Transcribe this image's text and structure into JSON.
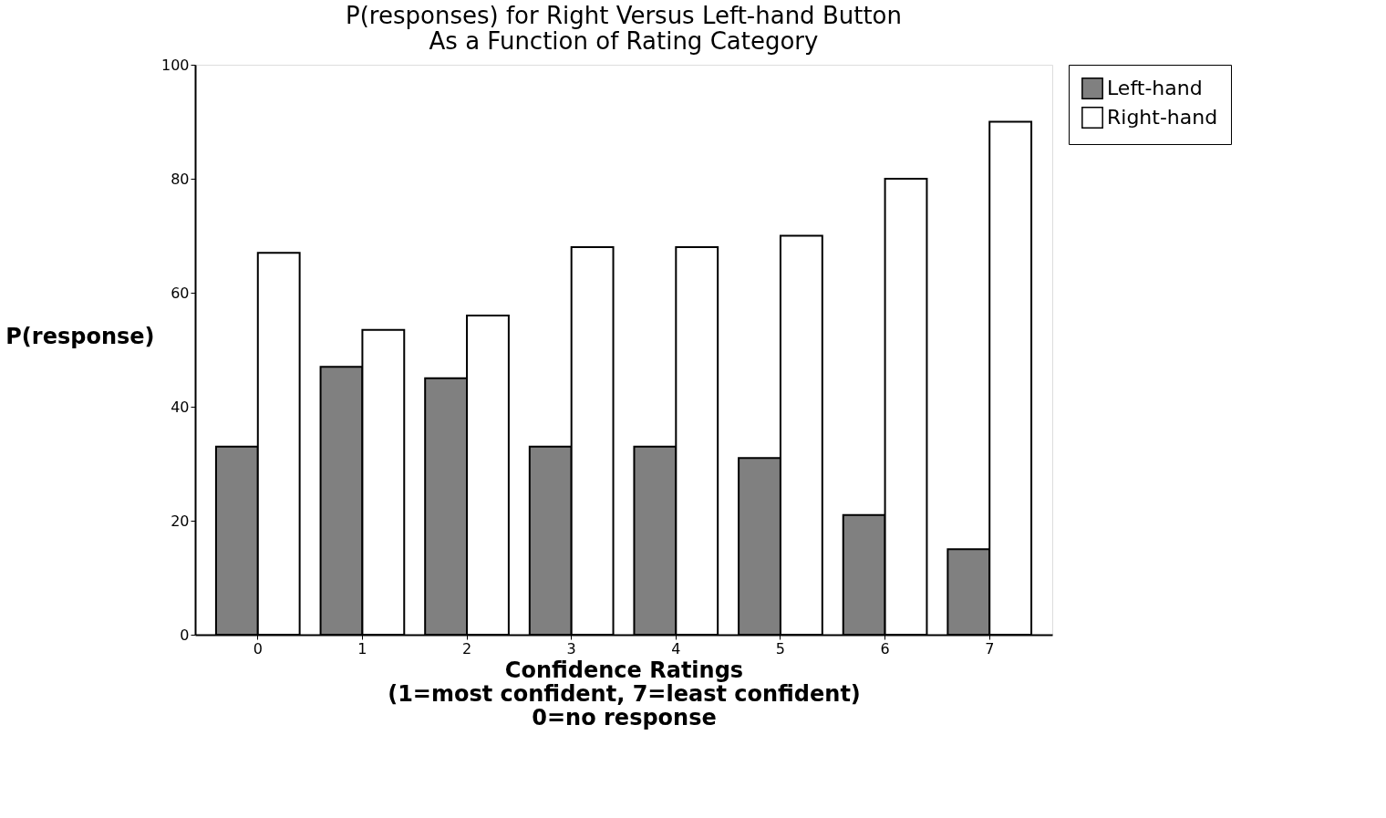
{
  "chart_data": {
    "type": "bar",
    "title": "P(responses) for Right Versus Left-hand Button\nAs a Function of Rating Category",
    "xlabel": "Confidence Ratings\n(1=most confident, 7=least confident)\n0=no response",
    "ylabel": "P(response)",
    "categories": [
      "0",
      "1",
      "2",
      "3",
      "4",
      "5",
      "6",
      "7"
    ],
    "series": [
      {
        "name": "Left-hand",
        "color": "#808080",
        "values": [
          33,
          47,
          45,
          33,
          33,
          31,
          21,
          15
        ]
      },
      {
        "name": "Right-hand",
        "color": "#ffffff",
        "values": [
          67,
          53.5,
          56,
          68,
          68,
          70,
          80,
          90
        ]
      }
    ],
    "ylim": [
      0,
      100
    ],
    "yticks": [
      0,
      20,
      40,
      60,
      80,
      100
    ],
    "grid": false,
    "legend": "right"
  }
}
